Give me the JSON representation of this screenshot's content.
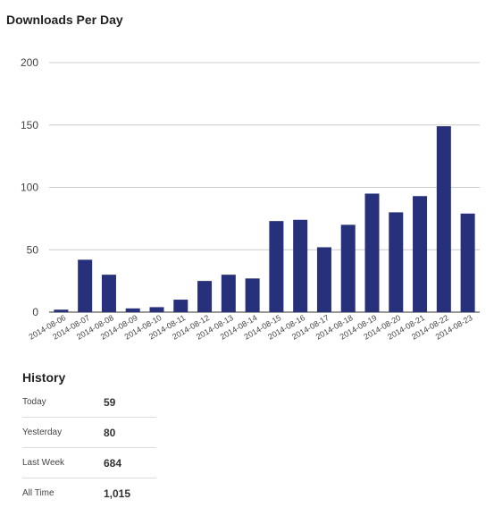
{
  "chart_data": {
    "type": "bar",
    "title": "Downloads Per Day",
    "xlabel": "",
    "ylabel": "",
    "ylim": [
      0,
      200
    ],
    "yticks": [
      0,
      50,
      100,
      150,
      200
    ],
    "grid": true,
    "bar_color": "#27307a",
    "categories": [
      "2014-08-06",
      "2014-08-07",
      "2014-08-08",
      "2014-08-09",
      "2014-08-10",
      "2014-08-11",
      "2014-08-12",
      "2014-08-13",
      "2014-08-14",
      "2014-08-15",
      "2014-08-16",
      "2014-08-17",
      "2014-08-18",
      "2014-08-19",
      "2014-08-20",
      "2014-08-21",
      "2014-08-22",
      "2014-08-23"
    ],
    "values": [
      2,
      42,
      30,
      3,
      4,
      10,
      25,
      30,
      27,
      73,
      74,
      52,
      70,
      95,
      80,
      93,
      149,
      79
    ]
  },
  "history": {
    "title": "History",
    "rows": [
      {
        "label": "Today",
        "value": "59"
      },
      {
        "label": "Yesterday",
        "value": "80"
      },
      {
        "label": "Last Week",
        "value": "684"
      },
      {
        "label": "All Time",
        "value": "1,015"
      }
    ]
  }
}
